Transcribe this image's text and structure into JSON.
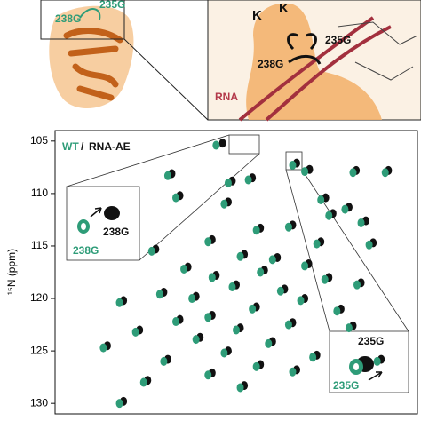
{
  "structure": {
    "left_labels": [
      "238G",
      "235G"
    ],
    "right_labels": [
      "K",
      "K",
      "235G",
      "238G",
      "RNA"
    ]
  },
  "chart_data": {
    "type": "scatter",
    "y_label": "¹⁵N (ppm)",
    "legend_separator": "/",
    "xlim": [
      10.5,
      6.0
    ],
    "ylim": [
      104,
      131
    ],
    "y_inverted": true,
    "yticks": [
      105,
      110,
      115,
      120,
      125,
      130
    ],
    "annotations": [
      "238G",
      "238G",
      "235G",
      "235G"
    ],
    "series": [
      {
        "name": "RNA-AE",
        "color": "#111111",
        "x": [
          9.05,
          8.42,
          7.5,
          6.76,
          7.34,
          8.05,
          8.3,
          6.36,
          8.95,
          7.14,
          8.35,
          7.05,
          6.85,
          6.64,
          7.55,
          7.95,
          8.55,
          7.2,
          6.55,
          9.25,
          8.15,
          7.74,
          7.35,
          8.85,
          7.9,
          8.5,
          7.1,
          6.7,
          8.25,
          7.65,
          9.15,
          8.75,
          7.4,
          9.65,
          8.0,
          6.95,
          8.55,
          8.95,
          7.55,
          8.2,
          9.45,
          6.8,
          8.7,
          7.8,
          9.85,
          8.35,
          7.25,
          9.1,
          7.95,
          8.55,
          7.5,
          9.35,
          8.15,
          6.45,
          9.65
        ],
        "values": [
          108.1,
          105.2,
          107.1,
          107.8,
          107.7,
          108.5,
          108.8,
          107.8,
          110.2,
          110.4,
          110.8,
          111.9,
          111.3,
          112.6,
          113.0,
          113.3,
          114.4,
          114.6,
          114.7,
          115.3,
          115.8,
          116.1,
          116.7,
          117.0,
          117.3,
          117.8,
          118.0,
          118.5,
          118.7,
          119.1,
          119.4,
          119.8,
          120.0,
          120.2,
          120.8,
          121.0,
          121.6,
          122.0,
          122.3,
          122.8,
          123.0,
          122.6,
          123.7,
          124.1,
          124.5,
          125.0,
          125.4,
          125.8,
          126.3,
          127.1,
          126.8,
          127.8,
          128.3,
          125.8,
          129.8
        ]
      },
      {
        "name": "WT",
        "color": "#2e9c78",
        "x": [
          9.1,
          8.5,
          7.55,
          6.8,
          7.4,
          8.1,
          8.35,
          6.4,
          9.0,
          7.2,
          8.4,
          7.1,
          6.9,
          6.7,
          7.6,
          8.0,
          8.6,
          7.25,
          6.6,
          9.3,
          8.2,
          7.8,
          7.4,
          8.9,
          7.95,
          8.55,
          7.15,
          6.75,
          8.3,
          7.7,
          9.2,
          8.8,
          7.45,
          9.7,
          8.05,
          7.0,
          8.6,
          9.0,
          7.6,
          8.25,
          9.5,
          6.85,
          8.75,
          7.85,
          9.9,
          8.4,
          7.3,
          9.15,
          8.0,
          8.6,
          7.55,
          9.4,
          8.2,
          6.5,
          9.7
        ],
        "values": [
          108.3,
          105.4,
          107.3,
          108.0,
          107.9,
          108.7,
          109.0,
          108.0,
          110.4,
          110.6,
          111.0,
          112.1,
          111.5,
          112.8,
          113.2,
          113.5,
          114.6,
          114.8,
          114.9,
          115.5,
          116.0,
          116.3,
          116.9,
          117.2,
          117.5,
          118.0,
          118.2,
          118.7,
          118.9,
          119.3,
          119.6,
          120.0,
          120.2,
          120.4,
          121.0,
          121.2,
          121.8,
          122.2,
          122.5,
          123.0,
          123.2,
          122.8,
          123.9,
          124.3,
          124.7,
          125.2,
          125.6,
          126.0,
          126.5,
          127.3,
          127.0,
          128.0,
          128.5,
          126.0,
          130.0
        ]
      }
    ]
  }
}
